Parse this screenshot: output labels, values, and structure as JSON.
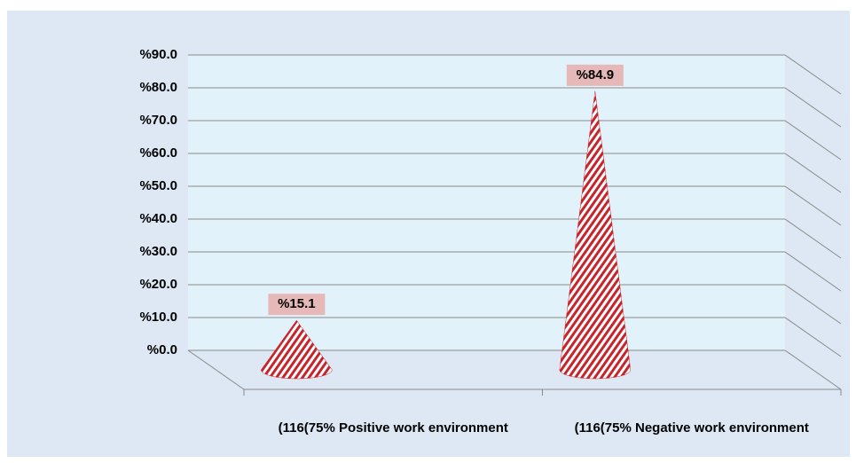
{
  "chart_data": {
    "type": "cone",
    "categories": [
      "(116(75% Positive work environment",
      "(116(75% Negative work environment"
    ],
    "values": [
      15.1,
      84.9
    ],
    "value_labels": [
      "%15.1",
      "%84.9"
    ],
    "color": "#c8242c",
    "ylim": [
      0,
      90
    ],
    "yticks": [
      {
        "value": 0,
        "label": "%0.0"
      },
      {
        "value": 10,
        "label": "%10.0"
      },
      {
        "value": 20,
        "label": "%20.0"
      },
      {
        "value": 30,
        "label": "%30.0"
      },
      {
        "value": 40,
        "label": "%40.0"
      },
      {
        "value": 50,
        "label": "%50.0"
      },
      {
        "value": 60,
        "label": "%60.0"
      },
      {
        "value": 70,
        "label": "%70.0"
      },
      {
        "value": 80,
        "label": "%80.0"
      },
      {
        "value": 90,
        "label": "%90.0"
      }
    ],
    "grid": true
  }
}
